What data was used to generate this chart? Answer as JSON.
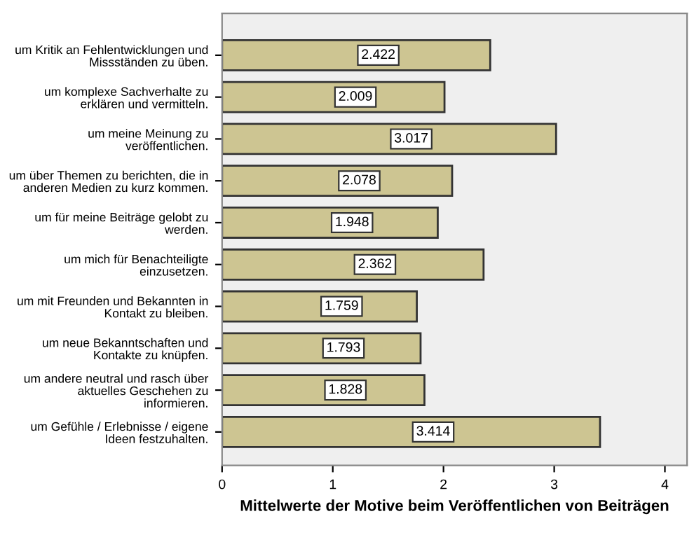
{
  "chart_data": {
    "type": "bar",
    "orientation": "horizontal",
    "xlabel": "Mittelwerte der Motive beim Veröffentlichen von Beiträgen",
    "categories": [
      "um Kritik an Fehlentwicklungen und\nMissständen zu üben.",
      "um komplexe Sachverhalte zu\nerklären und vermitteln.",
      "um meine Meinung zu\nveröffentlichen.",
      "um über Themen zu berichten, die in\nanderen Medien zu kurz kommen.",
      "um für meine Beiträge gelobt zu\nwerden.",
      "um mich für Benachteiligte\neinzusetzen.",
      "um mit Freunden und Bekannten in\nKontakt zu bleiben.",
      "um neue Bekanntschaften und\nKontakte zu knüpfen.",
      "um andere neutral und rasch über\naktuelles Geschehen zu\ninformieren.",
      "um Gefühle / Erlebnisse / eigene\nIdeen festzuhalten."
    ],
    "values": [
      2.422,
      2.009,
      3.017,
      2.078,
      1.948,
      2.362,
      1.759,
      1.793,
      1.828,
      3.414
    ],
    "color": "#cdc592",
    "xlim": [
      0,
      4.2
    ],
    "xticks": [
      0,
      1,
      2,
      3,
      4
    ],
    "data_labels": true,
    "grid": false,
    "legend": false
  }
}
